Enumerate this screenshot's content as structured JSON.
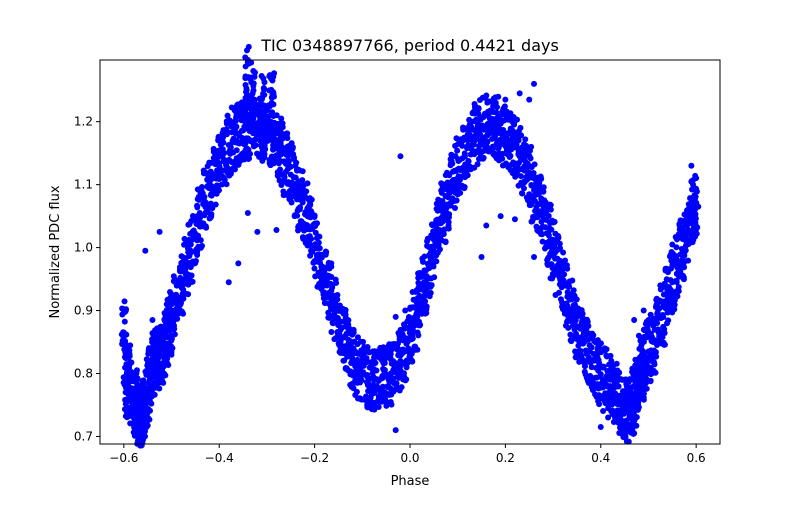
{
  "chart_data": {
    "type": "scatter",
    "title": "TIC 0348897766, period 0.4421 days",
    "xlabel": "Phase",
    "ylabel": "Normalized PDC flux",
    "xlim": [
      -0.65,
      0.65
    ],
    "ylim": [
      0.688,
      1.298
    ],
    "xticks": [
      {
        "value": -0.6,
        "label": "−0.6"
      },
      {
        "value": -0.4,
        "label": "−0.4"
      },
      {
        "value": -0.2,
        "label": "−0.2"
      },
      {
        "value": 0.0,
        "label": "0.0"
      },
      {
        "value": 0.2,
        "label": "0.2"
      },
      {
        "value": 0.4,
        "label": "0.4"
      },
      {
        "value": 0.6,
        "label": "0.6"
      }
    ],
    "yticks": [
      {
        "value": 0.7,
        "label": "0.7"
      },
      {
        "value": 0.8,
        "label": "0.8"
      },
      {
        "value": 0.9,
        "label": "0.9"
      },
      {
        "value": 1.0,
        "label": "1.0"
      },
      {
        "value": 1.1,
        "label": "1.1"
      },
      {
        "value": 1.2,
        "label": "1.2"
      }
    ],
    "grid": false,
    "marker_color": "#0000ff",
    "series": [
      {
        "points": [
          [
            -0.6,
            0.865
          ],
          [
            -0.595,
            0.78
          ],
          [
            -0.59,
            0.795
          ],
          [
            -0.585,
            0.77
          ],
          [
            -0.58,
            0.748
          ],
          [
            -0.575,
            0.76
          ],
          [
            -0.57,
            0.738
          ],
          [
            -0.565,
            0.73
          ],
          [
            -0.56,
            0.742
          ],
          [
            -0.555,
            0.755
          ],
          [
            -0.55,
            0.775
          ],
          [
            -0.545,
            0.8
          ],
          [
            -0.54,
            0.815
          ],
          [
            -0.535,
            0.822
          ],
          [
            -0.53,
            0.825
          ],
          [
            -0.525,
            0.83
          ],
          [
            -0.52,
            0.835
          ],
          [
            -0.515,
            0.845
          ],
          [
            -0.51,
            0.858
          ],
          [
            -0.505,
            0.87
          ],
          [
            -0.5,
            0.885
          ],
          [
            -0.49,
            0.912
          ],
          [
            -0.48,
            0.94
          ],
          [
            -0.47,
            0.968
          ],
          [
            -0.46,
            0.995
          ],
          [
            -0.45,
            1.022
          ],
          [
            -0.44,
            1.048
          ],
          [
            -0.43,
            1.073
          ],
          [
            -0.42,
            1.096
          ],
          [
            -0.41,
            1.116
          ],
          [
            -0.4,
            1.134
          ],
          [
            -0.39,
            1.15
          ],
          [
            -0.38,
            1.163
          ],
          [
            -0.37,
            1.173
          ],
          [
            -0.36,
            1.181
          ],
          [
            -0.35,
            1.186
          ],
          [
            -0.34,
            1.189
          ],
          [
            -0.33,
            1.19
          ],
          [
            -0.32,
            1.189
          ],
          [
            -0.31,
            1.186
          ],
          [
            -0.3,
            1.18
          ],
          [
            -0.29,
            1.172
          ],
          [
            -0.28,
            1.161
          ],
          [
            -0.27,
            1.148
          ],
          [
            -0.26,
            1.133
          ],
          [
            -0.25,
            1.116
          ],
          [
            -0.24,
            1.097
          ],
          [
            -0.23,
            1.076
          ],
          [
            -0.22,
            1.053
          ],
          [
            -0.21,
            1.029
          ],
          [
            -0.2,
            1.004
          ],
          [
            -0.19,
            0.979
          ],
          [
            -0.18,
            0.953
          ],
          [
            -0.17,
            0.928
          ],
          [
            -0.16,
            0.903
          ],
          [
            -0.15,
            0.879
          ],
          [
            -0.14,
            0.857
          ],
          [
            -0.13,
            0.838
          ],
          [
            -0.12,
            0.822
          ],
          [
            -0.11,
            0.81
          ],
          [
            -0.1,
            0.801
          ],
          [
            -0.09,
            0.795
          ],
          [
            -0.08,
            0.792
          ],
          [
            -0.07,
            0.791
          ],
          [
            -0.06,
            0.792
          ],
          [
            -0.05,
            0.795
          ],
          [
            -0.04,
            0.8
          ],
          [
            -0.03,
            0.808
          ],
          [
            -0.02,
            0.82
          ],
          [
            -0.01,
            0.836
          ],
          [
            0.0,
            0.857
          ],
          [
            0.01,
            0.882
          ],
          [
            0.02,
            0.91
          ],
          [
            0.03,
            0.94
          ],
          [
            0.04,
            0.97
          ],
          [
            0.05,
            1.0
          ],
          [
            0.06,
            1.028
          ],
          [
            0.07,
            1.055
          ],
          [
            0.08,
            1.08
          ],
          [
            0.09,
            1.103
          ],
          [
            0.1,
            1.124
          ],
          [
            0.11,
            1.142
          ],
          [
            0.12,
            1.158
          ],
          [
            0.13,
            1.171
          ],
          [
            0.14,
            1.181
          ],
          [
            0.15,
            1.188
          ],
          [
            0.16,
            1.192
          ],
          [
            0.17,
            1.193
          ],
          [
            0.18,
            1.191
          ],
          [
            0.19,
            1.187
          ],
          [
            0.2,
            1.18
          ],
          [
            0.21,
            1.171
          ],
          [
            0.22,
            1.159
          ],
          [
            0.23,
            1.145
          ],
          [
            0.24,
            1.129
          ],
          [
            0.25,
            1.111
          ],
          [
            0.26,
            1.091
          ],
          [
            0.27,
            1.069
          ],
          [
            0.28,
            1.046
          ],
          [
            0.29,
            1.022
          ],
          [
            0.3,
            0.997
          ],
          [
            0.31,
            0.972
          ],
          [
            0.32,
            0.947
          ],
          [
            0.33,
            0.922
          ],
          [
            0.34,
            0.898
          ],
          [
            0.35,
            0.875
          ],
          [
            0.36,
            0.854
          ],
          [
            0.37,
            0.836
          ],
          [
            0.38,
            0.821
          ],
          [
            0.39,
            0.809
          ],
          [
            0.4,
            0.799
          ],
          [
            0.41,
            0.79
          ],
          [
            0.42,
            0.78
          ],
          [
            0.43,
            0.768
          ],
          [
            0.44,
            0.755
          ],
          [
            0.45,
            0.744
          ],
          [
            0.455,
            0.738
          ],
          [
            0.46,
            0.74
          ],
          [
            0.465,
            0.748
          ],
          [
            0.47,
            0.76
          ],
          [
            0.475,
            0.775
          ],
          [
            0.48,
            0.79
          ],
          [
            0.485,
            0.803
          ],
          [
            0.49,
            0.815
          ],
          [
            0.495,
            0.825
          ],
          [
            0.5,
            0.835
          ],
          [
            0.51,
            0.85
          ],
          [
            0.52,
            0.87
          ],
          [
            0.53,
            0.893
          ],
          [
            0.54,
            0.918
          ],
          [
            0.55,
            0.945
          ],
          [
            0.56,
            0.972
          ],
          [
            0.57,
            0.998
          ],
          [
            0.58,
            1.022
          ],
          [
            0.59,
            1.045
          ],
          [
            0.595,
            1.058
          ],
          [
            0.6,
            1.07
          ],
          [
            -0.33,
            1.245
          ],
          [
            -0.31,
            1.238
          ],
          [
            -0.29,
            1.23
          ],
          [
            -0.34,
            1.27
          ],
          [
            -0.27,
            1.205
          ],
          [
            0.2,
            1.235
          ],
          [
            0.23,
            1.245
          ],
          [
            0.26,
            1.26
          ],
          [
            0.18,
            1.23
          ],
          [
            0.25,
            1.235
          ],
          [
            -0.32,
            1.025
          ],
          [
            -0.28,
            1.028
          ],
          [
            -0.36,
            0.975
          ],
          [
            -0.38,
            0.945
          ],
          [
            -0.34,
            1.055
          ],
          [
            0.22,
            1.045
          ],
          [
            0.19,
            1.05
          ],
          [
            0.16,
            1.035
          ],
          [
            0.15,
            0.985
          ],
          [
            0.26,
            0.985
          ],
          [
            -0.02,
            1.145
          ],
          [
            0.01,
            0.905
          ],
          [
            -0.01,
            0.9
          ],
          [
            -0.03,
            0.89
          ],
          [
            0.47,
            0.885
          ],
          [
            0.48,
            0.86
          ],
          [
            0.5,
            0.885
          ],
          [
            0.49,
            0.9
          ],
          [
            0.58,
            1.045
          ],
          [
            0.59,
            1.13
          ],
          [
            0.59,
            1.105
          ],
          [
            0.55,
            1.005
          ],
          [
            -0.555,
            0.995
          ],
          [
            -0.525,
            1.025
          ],
          [
            -0.51,
            0.91
          ],
          [
            -0.54,
            0.885
          ],
          [
            -0.53,
            0.865
          ],
          [
            -0.5,
            0.86
          ],
          [
            0.4,
            0.715
          ],
          [
            -0.57,
            0.705
          ],
          [
            0.47,
            0.705
          ],
          [
            -0.03,
            0.71
          ],
          [
            -0.05,
            0.755
          ],
          [
            0.405,
            0.76
          ],
          [
            0.42,
            0.79
          ],
          [
            0.44,
            0.73
          ]
        ]
      }
    ]
  }
}
